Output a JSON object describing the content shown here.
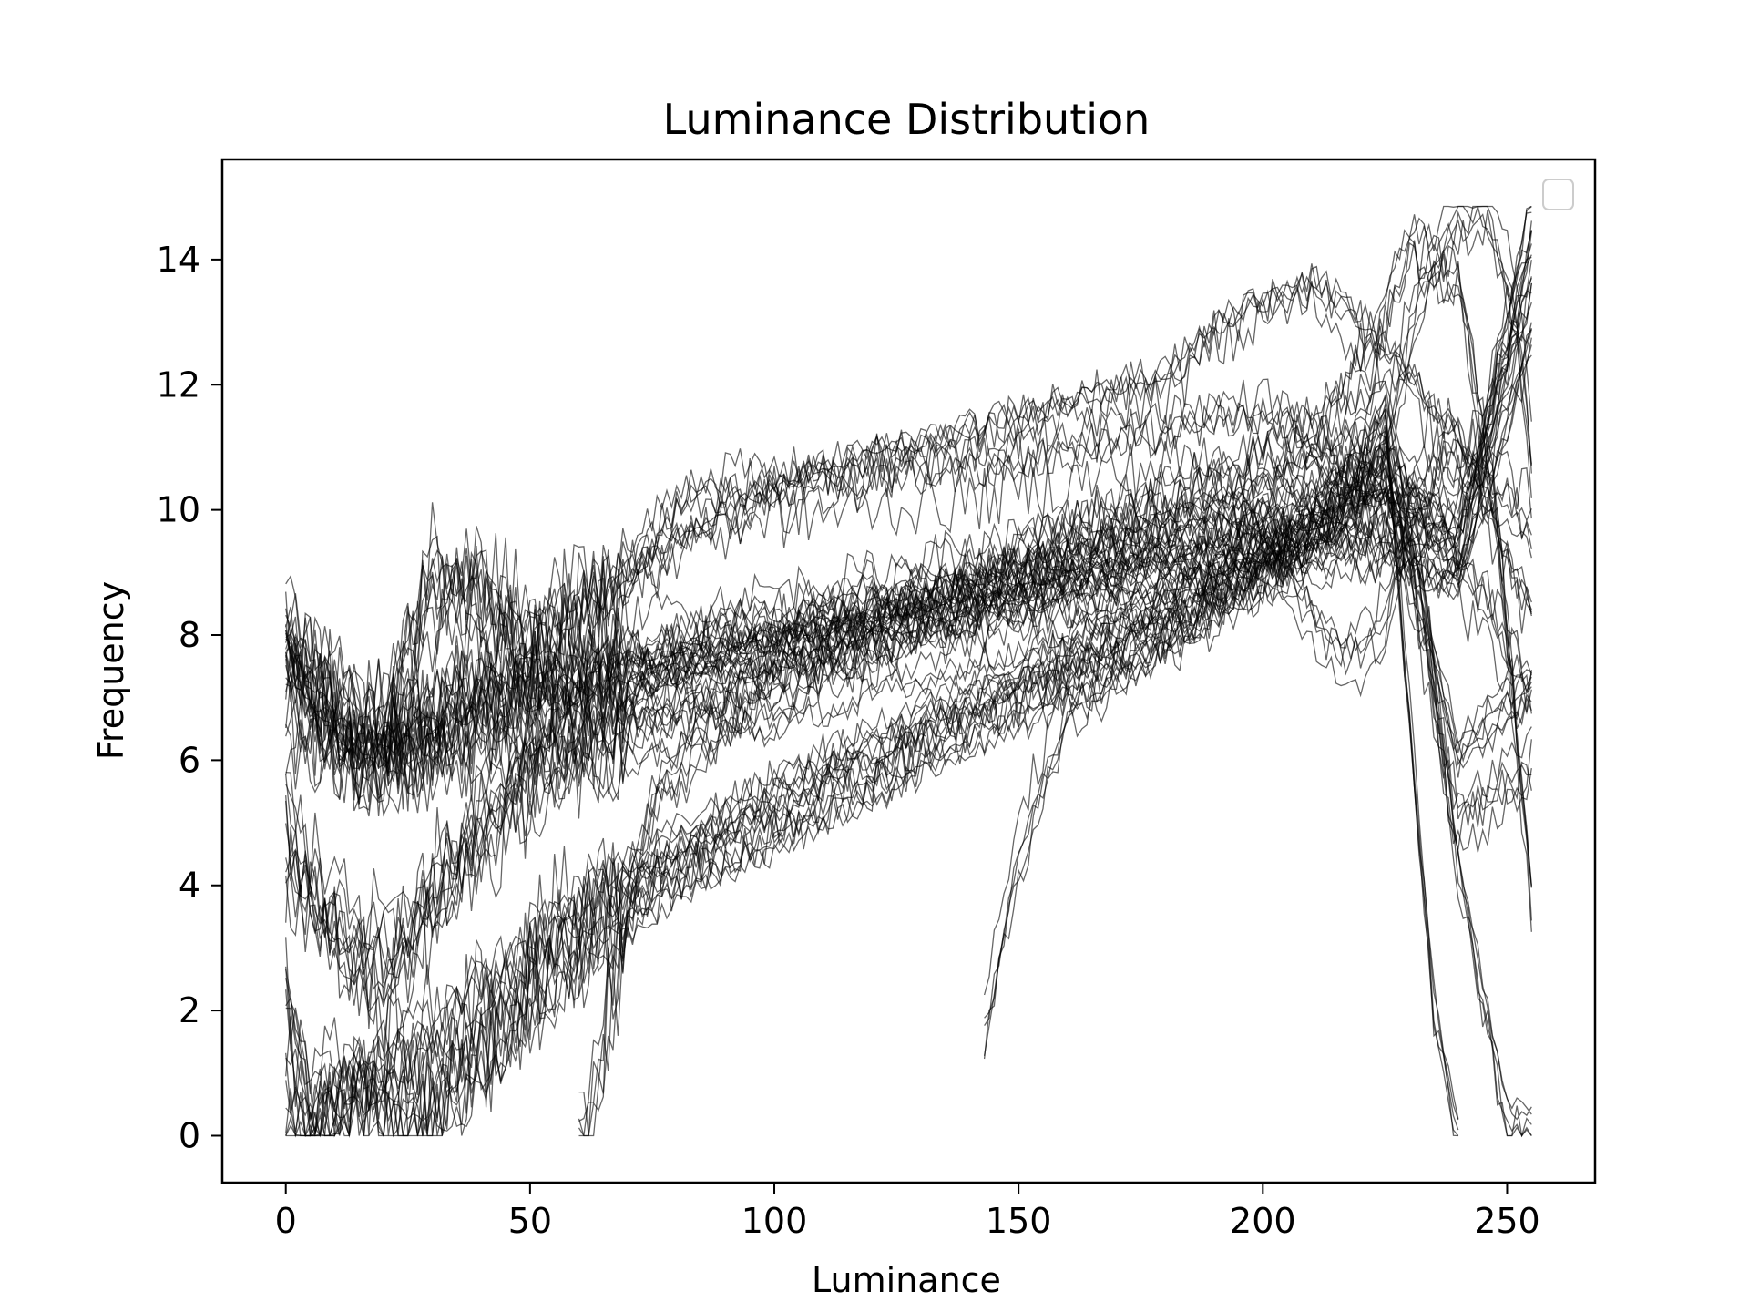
{
  "chart_data": {
    "type": "line",
    "title": "Luminance Distribution",
    "xlabel": "Luminance",
    "ylabel": "Frequency",
    "xlim": [
      -13,
      268
    ],
    "ylim": [
      -0.75,
      15.6
    ],
    "xticks": [
      0,
      50,
      100,
      150,
      200,
      250
    ],
    "yticks": [
      0,
      2,
      4,
      6,
      8,
      10,
      12,
      14
    ],
    "grid": false,
    "legend": "top-right (empty)",
    "line_color": "#000000",
    "line_opacity": 0.6,
    "series_count": 70,
    "series": [
      {
        "x": [
          0,
          5,
          15,
          25,
          35,
          45,
          55,
          65,
          80,
          100,
          120,
          140,
          160,
          180,
          200,
          215,
          225,
          240,
          255
        ],
        "values": [
          8.2,
          7.3,
          6.5,
          6.6,
          7.2,
          7.5,
          7.6,
          7.8,
          8.0,
          8.3,
          8.6,
          9.0,
          9.3,
          9.6,
          9.9,
          10.3,
          10.5,
          10.0,
          14.1
        ]
      },
      {
        "x": [
          0,
          5,
          15,
          25,
          35,
          45,
          55,
          65,
          80,
          100,
          120,
          140,
          160,
          180,
          200,
          215,
          225,
          240,
          255
        ],
        "values": [
          8.0,
          7.1,
          6.3,
          6.3,
          6.8,
          7.1,
          7.3,
          7.5,
          7.7,
          8.0,
          8.3,
          8.6,
          8.9,
          9.2,
          9.6,
          10.0,
          10.2,
          9.6,
          13.5
        ]
      },
      {
        "x": [
          0,
          5,
          15,
          25,
          35,
          45,
          55,
          65,
          80,
          100,
          120,
          140,
          160,
          180,
          200,
          215,
          225,
          240,
          255
        ],
        "values": [
          7.6,
          6.8,
          6.0,
          6.1,
          6.5,
          6.8,
          7.0,
          7.2,
          7.5,
          7.8,
          8.1,
          8.4,
          8.7,
          9.0,
          9.3,
          9.6,
          9.5,
          9.0,
          12.8
        ]
      },
      {
        "x": [
          0,
          5,
          15,
          25,
          35,
          45,
          55,
          65,
          80,
          100,
          120,
          140,
          160,
          180,
          200,
          215,
          225,
          240,
          255
        ],
        "values": [
          5.4,
          4.2,
          3.0,
          3.5,
          4.6,
          5.5,
          6.0,
          6.3,
          6.6,
          7.0,
          7.5,
          8.0,
          8.5,
          8.8,
          9.2,
          9.5,
          9.6,
          9.2,
          14.8
        ]
      },
      {
        "x": [
          0,
          5,
          15,
          25,
          35,
          45,
          55,
          65,
          80,
          100,
          120,
          140,
          160,
          180,
          200,
          215,
          225,
          240,
          255
        ],
        "values": [
          2.0,
          0.5,
          0.7,
          1.2,
          1.8,
          2.5,
          3.2,
          3.8,
          4.5,
          5.3,
          6.1,
          6.8,
          7.5,
          8.2,
          9.0,
          9.8,
          10.5,
          6.0,
          7.0
        ]
      },
      {
        "x": [
          0,
          5,
          15,
          25,
          35,
          45,
          55,
          65,
          80,
          100,
          120,
          140,
          160,
          180,
          200,
          215,
          225,
          240,
          255
        ],
        "values": [
          1.5,
          0.0,
          0.7,
          0.0,
          1.0,
          2.0,
          2.8,
          3.5,
          4.3,
          5.1,
          5.9,
          6.7,
          7.4,
          8.2,
          9.1,
          10.2,
          11.0,
          5.0,
          6.0
        ]
      },
      {
        "x": [
          0,
          5,
          15,
          25,
          35,
          45,
          55,
          65,
          80,
          100,
          120,
          140,
          160,
          180,
          200,
          215,
          225,
          235,
          240
        ],
        "values": [
          0.0,
          0.0,
          0.7,
          0.5,
          0.7,
          1.5,
          2.5,
          3.2,
          4.0,
          4.8,
          5.6,
          6.4,
          7.2,
          8.0,
          8.9,
          10.0,
          11.5,
          2.0,
          0.0
        ]
      },
      {
        "x": [
          0,
          10,
          20,
          30,
          40,
          50,
          60,
          70,
          80,
          90,
          100,
          120,
          140,
          160,
          180,
          200,
          210,
          220,
          230,
          245,
          255
        ],
        "values": [
          7.5,
          7.0,
          6.5,
          8.0,
          9.0,
          8.0,
          8.5,
          9.0,
          10.0,
          10.3,
          10.3,
          10.5,
          10.6,
          10.9,
          11.2,
          11.5,
          11.0,
          10.5,
          10.2,
          8.5,
          7.0
        ]
      },
      {
        "x": [
          20,
          30,
          40,
          50,
          60,
          70,
          80,
          90,
          100,
          120,
          140,
          160,
          180,
          190,
          200,
          210,
          222,
          232,
          242,
          255
        ],
        "values": [
          6.0,
          9.0,
          8.0,
          7.5,
          8.0,
          8.6,
          9.2,
          9.6,
          10.0,
          10.5,
          10.9,
          11.4,
          11.8,
          12.5,
          13.0,
          13.3,
          12.5,
          11.5,
          10.5,
          8.0
        ]
      },
      {
        "x": [
          60,
          75,
          90,
          105,
          120,
          135,
          150,
          165,
          180,
          195,
          210,
          222,
          230,
          240,
          248,
          255
        ],
        "values": [
          0.0,
          5.5,
          7.0,
          7.6,
          8.2,
          8.8,
          9.4,
          10.0,
          10.4,
          10.8,
          11.5,
          12.5,
          14.5,
          13.8,
          10.0,
          4.0
        ]
      },
      {
        "x": [
          143,
          150,
          160,
          175,
          190,
          200,
          210,
          218,
          225,
          232,
          240,
          246,
          252,
          255
        ],
        "values": [
          1.6,
          4.5,
          6.8,
          7.7,
          8.5,
          9.2,
          9.5,
          9.8,
          11.0,
          13.5,
          14.7,
          14.8,
          13.0,
          10.8
        ]
      },
      {
        "x": [
          0,
          20,
          40,
          60,
          80,
          100,
          120,
          140,
          160,
          180,
          200,
          205,
          212,
          220,
          225,
          230,
          238,
          245,
          255
        ],
        "values": [
          6.5,
          6.0,
          6.2,
          6.8,
          7.4,
          7.9,
          8.4,
          8.8,
          9.3,
          9.8,
          10.1,
          9.0,
          8.0,
          7.6,
          8.2,
          10.0,
          11.0,
          10.5,
          9.8
        ]
      },
      {
        "x": [
          0,
          10,
          20,
          30,
          40,
          50,
          60,
          70,
          85,
          100,
          120,
          140,
          160,
          180,
          200,
          215,
          225,
          232,
          240,
          250,
          255
        ],
        "values": [
          4.0,
          3.0,
          2.0,
          3.5,
          4.5,
          5.5,
          6.2,
          6.6,
          7.0,
          7.4,
          7.9,
          8.4,
          8.9,
          9.4,
          10.0,
          10.6,
          11.5,
          9.0,
          4.0,
          0.0,
          0.0
        ]
      }
    ]
  }
}
